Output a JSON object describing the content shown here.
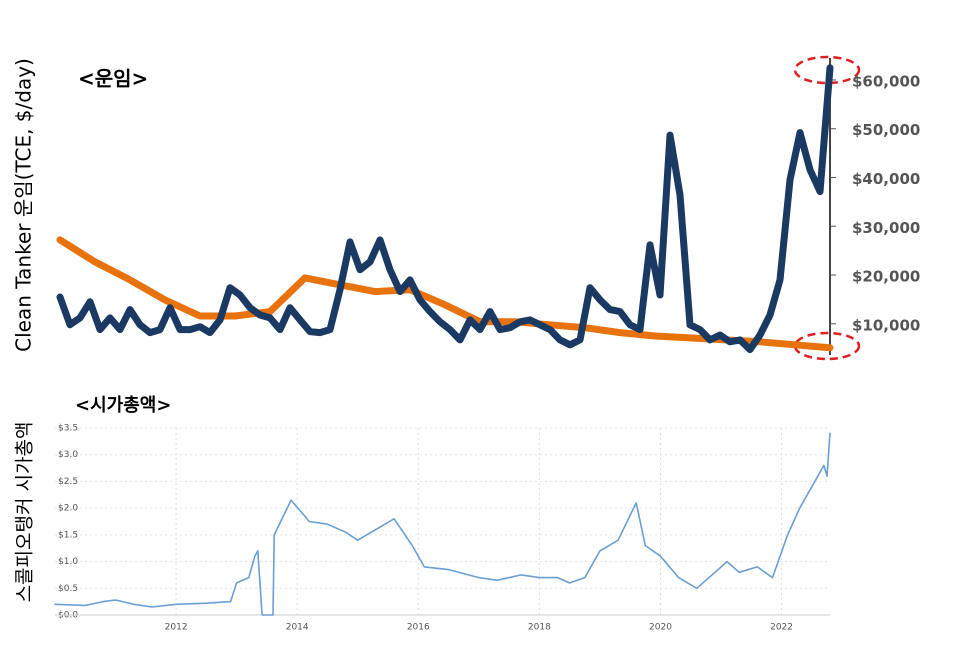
{
  "chart_data": [
    {
      "type": "line",
      "title": "<운임>",
      "y_label": "Clean Tanker 운임(TCE, $/day)",
      "ylim": [
        3600,
        64500
      ],
      "yticks": [
        {
          "value": 10000,
          "label": "$10,000"
        },
        {
          "value": 20000,
          "label": "$20,000"
        },
        {
          "value": 30000,
          "label": "$30,000"
        },
        {
          "value": 40000,
          "label": "$40,000"
        },
        {
          "value": 50000,
          "label": "$50,000"
        },
        {
          "value": 60000,
          "label": "$60,000"
        }
      ],
      "series": [
        {
          "color": "#e8720c",
          "values": [
            27200,
            22700,
            19000,
            14900,
            11600,
            11600,
            12500,
            19400,
            18000,
            16600,
            17000,
            13900,
            10400,
            10400,
            9800,
            9200,
            8200,
            7500,
            7100,
            6700,
            6300,
            5700,
            5100
          ]
        },
        {
          "color": "#1b3a63",
          "values": [
            15500,
            9800,
            11200,
            14500,
            8800,
            11200,
            8800,
            12900,
            9800,
            8200,
            8800,
            13300,
            8800,
            8800,
            9400,
            8200,
            10800,
            17400,
            15900,
            13300,
            11800,
            11200,
            8800,
            13300,
            10800,
            8400,
            8200,
            8800,
            17000,
            26800,
            21100,
            22700,
            27200,
            21100,
            16600,
            19000,
            14900,
            12500,
            10400,
            8800,
            6700,
            10800,
            8800,
            12500,
            8800,
            9200,
            10400,
            10800,
            9800,
            8800,
            6700,
            5700,
            6700,
            17400,
            14900,
            12900,
            12500,
            9800,
            8800,
            26200,
            15900,
            48700,
            36400,
            9800,
            8800,
            6700,
            7700,
            6300,
            6700,
            4700,
            7700,
            11800,
            19000,
            39500,
            49200,
            41600,
            37100,
            62500
          ]
        }
      ]
    },
    {
      "type": "line",
      "title": "<시가총액>",
      "y_label": "스콜피오탱커 시가총액",
      "xlim": [
        2010,
        2022.8
      ],
      "xticks": [
        2012,
        2014,
        2016,
        2018,
        2020,
        2022
      ],
      "ylim": [
        0,
        3.5
      ],
      "yticks": [
        {
          "value": 0,
          "label": "$0.0"
        },
        {
          "value": 0.5,
          "label": "$0.5"
        },
        {
          "value": 1,
          "label": "$1.0"
        },
        {
          "value": 1.5,
          "label": "$1.5"
        },
        {
          "value": 2,
          "label": "$2.0"
        },
        {
          "value": 2.5,
          "label": "$2.5"
        },
        {
          "value": 3,
          "label": "$3.0"
        },
        {
          "value": 3.5,
          "label": "$3.5"
        }
      ],
      "grid": true,
      "x": [
        2010.0,
        2010.5,
        2010.8,
        2011.0,
        2011.3,
        2011.6,
        2012.0,
        2012.5,
        2012.9,
        2013.0,
        2013.2,
        2013.3,
        2013.35,
        2013.42,
        2013.6,
        2013.62,
        2013.9,
        2014.2,
        2014.5,
        2014.8,
        2015.0,
        2015.3,
        2015.6,
        2015.9,
        2016.1,
        2016.5,
        2017.0,
        2017.3,
        2017.7,
        2018.0,
        2018.3,
        2018.5,
        2018.75,
        2019.0,
        2019.3,
        2019.6,
        2019.75,
        2020.0,
        2020.3,
        2020.6,
        2020.9,
        2021.1,
        2021.3,
        2021.6,
        2021.85,
        2022.1,
        2022.3,
        2022.5,
        2022.7,
        2022.75,
        2022.8
      ],
      "series": [
        {
          "color": "#6a9fd4",
          "values": [
            0.2,
            0.18,
            0.25,
            0.28,
            0.2,
            0.15,
            0.2,
            0.22,
            0.25,
            0.6,
            0.7,
            1.1,
            1.2,
            0,
            0,
            1.5,
            2.15,
            1.75,
            1.7,
            1.55,
            1.4,
            1.6,
            1.8,
            1.3,
            0.9,
            0.85,
            0.7,
            0.65,
            0.75,
            0.7,
            0.7,
            0.6,
            0.7,
            1.2,
            1.4,
            2.1,
            1.3,
            1.1,
            0.7,
            0.5,
            0.8,
            1.0,
            0.8,
            0.9,
            0.7,
            1.5,
            2.0,
            2.4,
            2.8,
            2.6,
            3.4
          ]
        }
      ]
    }
  ]
}
